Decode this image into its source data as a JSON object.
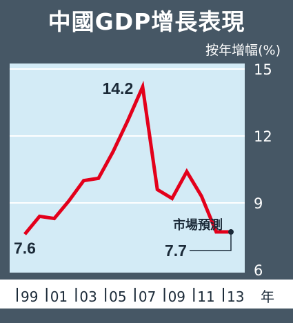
{
  "title": "中國GDP增長表現",
  "unit_label": "按年增幅(%)",
  "chart_data": {
    "type": "line",
    "title": "中國GDP增長表現",
    "ylabel": "按年增幅(%)",
    "x_unit": "年",
    "ylim": [
      6,
      15
    ],
    "y_ticks": [
      6,
      9,
      12,
      15
    ],
    "x_ticks": [
      "99",
      "01",
      "03",
      "05",
      "07",
      "09",
      "11",
      "13"
    ],
    "grid": "horizontal",
    "series": [
      {
        "color": "#e3001b",
        "x": [
          1999,
          2000,
          2001,
          2002,
          2003,
          2004,
          2005,
          2006,
          2007,
          2008,
          2009,
          2010,
          2011,
          2012,
          2013
        ],
        "values": [
          7.6,
          8.4,
          8.3,
          9.1,
          10.0,
          10.1,
          11.3,
          12.7,
          14.2,
          9.6,
          9.2,
          10.4,
          9.3,
          7.7,
          7.7
        ]
      }
    ],
    "annotations": [
      {
        "text": "7.6",
        "point_index": 0
      },
      {
        "text": "14.2",
        "point_index": 8
      },
      {
        "text": "市場預測",
        "point_index": 14
      },
      {
        "text": "7.7",
        "point_index": 14
      }
    ]
  },
  "colors": {
    "frame": "#465765",
    "plot_bg": "#d3ebf6",
    "grid": "#ffffff",
    "line": "#e3001b"
  }
}
